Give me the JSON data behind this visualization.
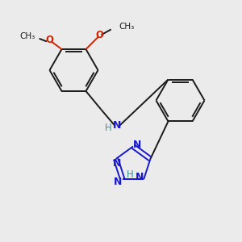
{
  "background_color": "#ebebeb",
  "bond_color": "#1a1a1a",
  "nitrogen_color": "#1919cc",
  "oxygen_color": "#cc2200",
  "nh_color": "#339999",
  "figsize": [
    3.0,
    3.0
  ],
  "dpi": 100,
  "xlim": [
    0,
    10
  ],
  "ylim": [
    0,
    10
  ]
}
